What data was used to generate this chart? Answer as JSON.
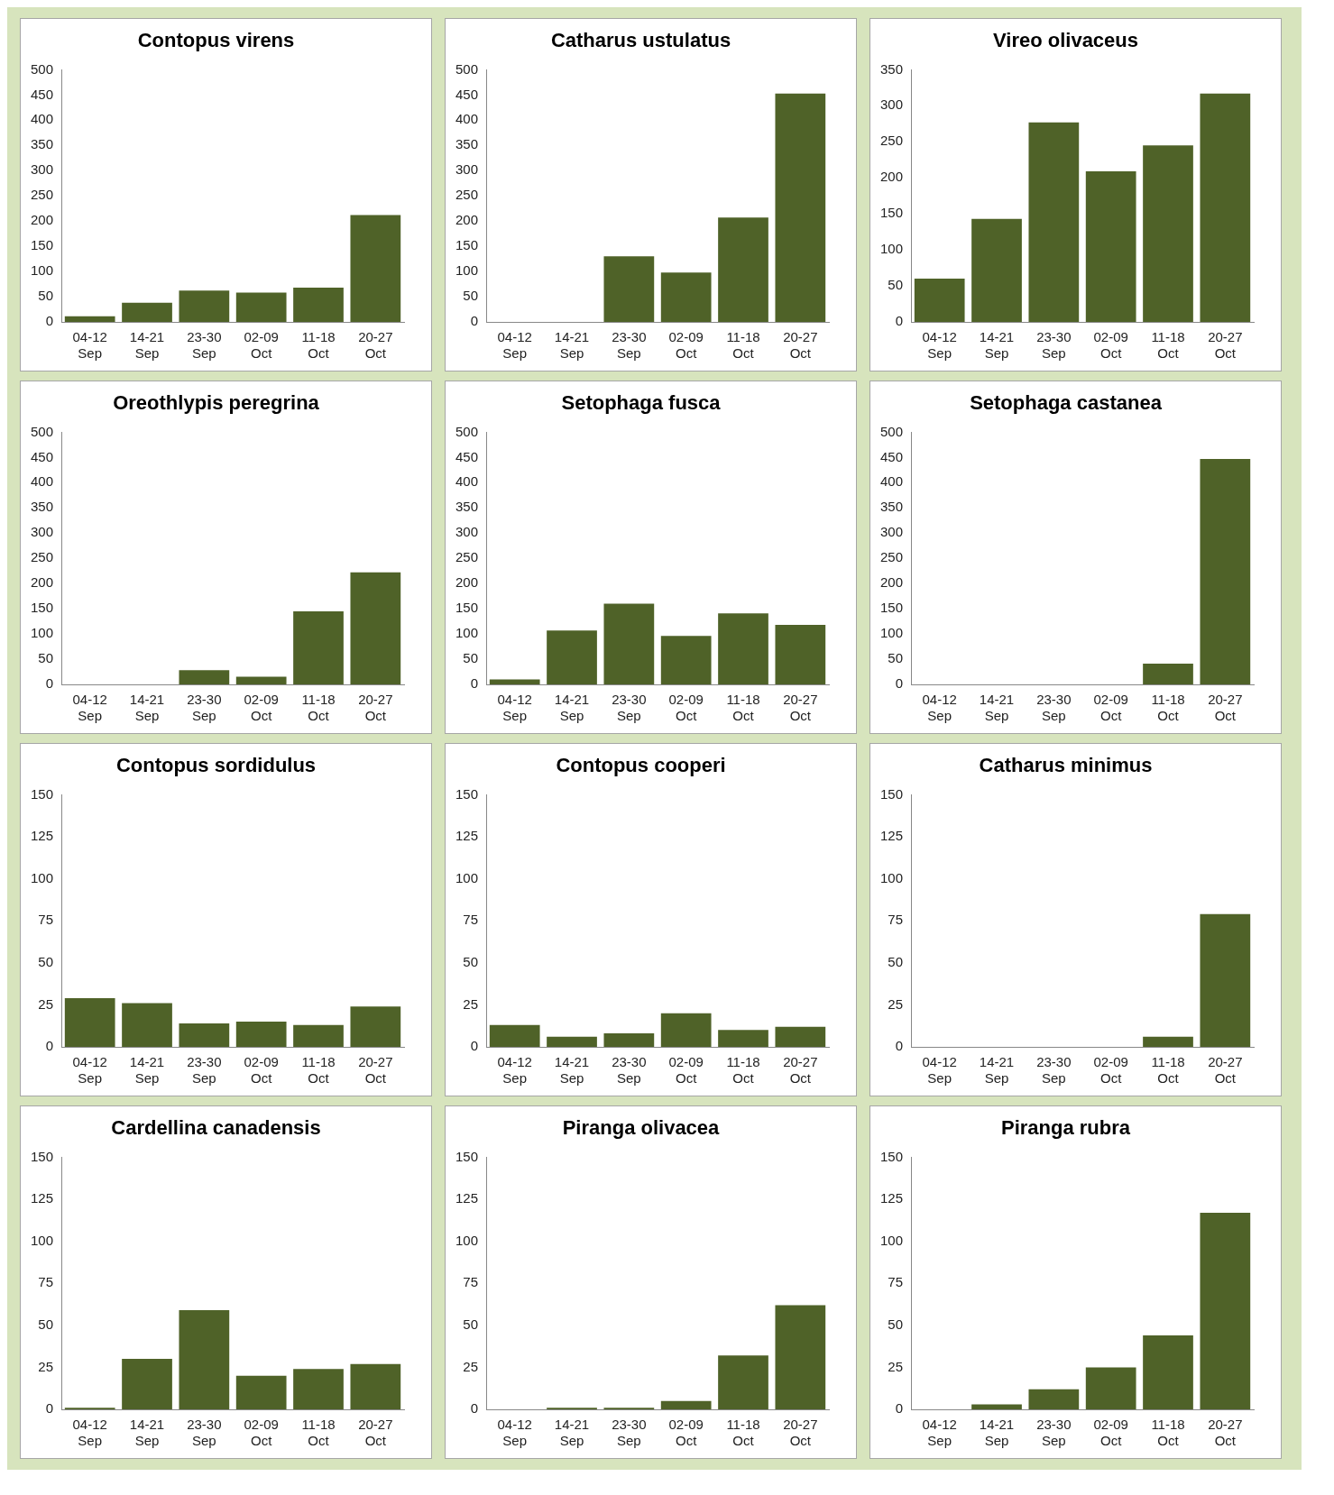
{
  "chart_data": [
    {
      "type": "bar",
      "title": "Contopus virens",
      "categories": [
        "04-12 Sep",
        "14-21 Sep",
        "23-30 Sep",
        "02-09 Oct",
        "11-18 Oct",
        "20-27 Oct"
      ],
      "values": [
        11,
        38,
        62,
        58,
        68,
        212
      ],
      "color": "#4f6228",
      "ylim": [
        0,
        500
      ],
      "yticks": [
        0,
        50,
        100,
        150,
        200,
        250,
        300,
        350,
        400,
        450,
        500
      ]
    },
    {
      "type": "bar",
      "title": "Catharus ustulatus",
      "categories": [
        "04-12 Sep",
        "14-21 Sep",
        "23-30 Sep",
        "02-09 Oct",
        "11-18 Oct",
        "20-27 Oct"
      ],
      "values": [
        0,
        0,
        130,
        98,
        207,
        453
      ],
      "color": "#4f6228",
      "ylim": [
        0,
        500
      ],
      "yticks": [
        0,
        50,
        100,
        150,
        200,
        250,
        300,
        350,
        400,
        450,
        500
      ]
    },
    {
      "type": "bar",
      "title": "Vireo olivaceus",
      "categories": [
        "04-12 Sep",
        "14-21 Sep",
        "23-30 Sep",
        "02-09 Oct",
        "11-18 Oct",
        "20-27 Oct"
      ],
      "values": [
        60,
        143,
        277,
        209,
        245,
        317
      ],
      "color": "#4f6228",
      "ylim": [
        0,
        350
      ],
      "yticks": [
        0,
        50,
        100,
        150,
        200,
        250,
        300,
        350
      ]
    },
    {
      "type": "bar",
      "title": "Oreothlypis peregrina",
      "categories": [
        "04-12 Sep",
        "14-21 Sep",
        "23-30 Sep",
        "02-09 Oct",
        "11-18 Oct",
        "20-27 Oct"
      ],
      "values": [
        0,
        0,
        28,
        15,
        145,
        222
      ],
      "color": "#4f6228",
      "ylim": [
        0,
        500
      ],
      "yticks": [
        0,
        50,
        100,
        150,
        200,
        250,
        300,
        350,
        400,
        450,
        500
      ]
    },
    {
      "type": "bar",
      "title": "Setophaga fusca",
      "categories": [
        "04-12 Sep",
        "14-21 Sep",
        "23-30 Sep",
        "02-09 Oct",
        "11-18 Oct",
        "20-27 Oct"
      ],
      "values": [
        10,
        107,
        160,
        96,
        141,
        118
      ],
      "color": "#4f6228",
      "ylim": [
        0,
        500
      ],
      "yticks": [
        0,
        50,
        100,
        150,
        200,
        250,
        300,
        350,
        400,
        450,
        500
      ]
    },
    {
      "type": "bar",
      "title": "Setophaga castanea",
      "categories": [
        "04-12 Sep",
        "14-21 Sep",
        "23-30 Sep",
        "02-09 Oct",
        "11-18 Oct",
        "20-27 Oct"
      ],
      "values": [
        0,
        0,
        0,
        0,
        41,
        447
      ],
      "color": "#4f6228",
      "ylim": [
        0,
        500
      ],
      "yticks": [
        0,
        50,
        100,
        150,
        200,
        250,
        300,
        350,
        400,
        450,
        500
      ]
    },
    {
      "type": "bar",
      "title": "Contopus sordidulus",
      "categories": [
        "04-12 Sep",
        "14-21 Sep",
        "23-30 Sep",
        "02-09 Oct",
        "11-18 Oct",
        "20-27 Oct"
      ],
      "values": [
        29,
        26,
        14,
        15,
        13,
        24
      ],
      "color": "#4f6228",
      "ylim": [
        0,
        150
      ],
      "yticks": [
        0,
        25,
        50,
        75,
        100,
        125,
        150
      ]
    },
    {
      "type": "bar",
      "title": "Contopus cooperi",
      "categories": [
        "04-12 Sep",
        "14-21 Sep",
        "23-30 Sep",
        "02-09 Oct",
        "11-18 Oct",
        "20-27 Oct"
      ],
      "values": [
        13,
        6,
        8,
        20,
        10,
        12
      ],
      "color": "#4f6228",
      "ylim": [
        0,
        150
      ],
      "yticks": [
        0,
        25,
        50,
        75,
        100,
        125,
        150
      ]
    },
    {
      "type": "bar",
      "title": "Catharus minimus",
      "categories": [
        "04-12 Sep",
        "14-21 Sep",
        "23-30 Sep",
        "02-09 Oct",
        "11-18 Oct",
        "20-27 Oct"
      ],
      "values": [
        0,
        0,
        0,
        0,
        6,
        79
      ],
      "color": "#4f6228",
      "ylim": [
        0,
        150
      ],
      "yticks": [
        0,
        25,
        50,
        75,
        100,
        125,
        150
      ]
    },
    {
      "type": "bar",
      "title": "Cardellina canadensis",
      "categories": [
        "04-12 Sep",
        "14-21 Sep",
        "23-30 Sep",
        "02-09 Oct",
        "11-18 Oct",
        "20-27 Oct"
      ],
      "values": [
        1,
        30,
        59,
        20,
        24,
        27
      ],
      "color": "#4f6228",
      "ylim": [
        0,
        150
      ],
      "yticks": [
        0,
        25,
        50,
        75,
        100,
        125,
        150
      ]
    },
    {
      "type": "bar",
      "title": "Piranga olivacea",
      "categories": [
        "04-12 Sep",
        "14-21 Sep",
        "23-30 Sep",
        "02-09 Oct",
        "11-18 Oct",
        "20-27 Oct"
      ],
      "values": [
        0,
        1,
        1,
        5,
        32,
        62
      ],
      "color": "#4f6228",
      "ylim": [
        0,
        150
      ],
      "yticks": [
        0,
        25,
        50,
        75,
        100,
        125,
        150
      ]
    },
    {
      "type": "bar",
      "title": "Piranga rubra",
      "categories": [
        "04-12 Sep",
        "14-21 Sep",
        "23-30 Sep",
        "02-09 Oct",
        "11-18 Oct",
        "20-27 Oct"
      ],
      "values": [
        0,
        3,
        12,
        25,
        44,
        117
      ],
      "color": "#4f6228",
      "ylim": [
        0,
        150
      ],
      "yticks": [
        0,
        25,
        50,
        75,
        100,
        125,
        150
      ]
    }
  ]
}
